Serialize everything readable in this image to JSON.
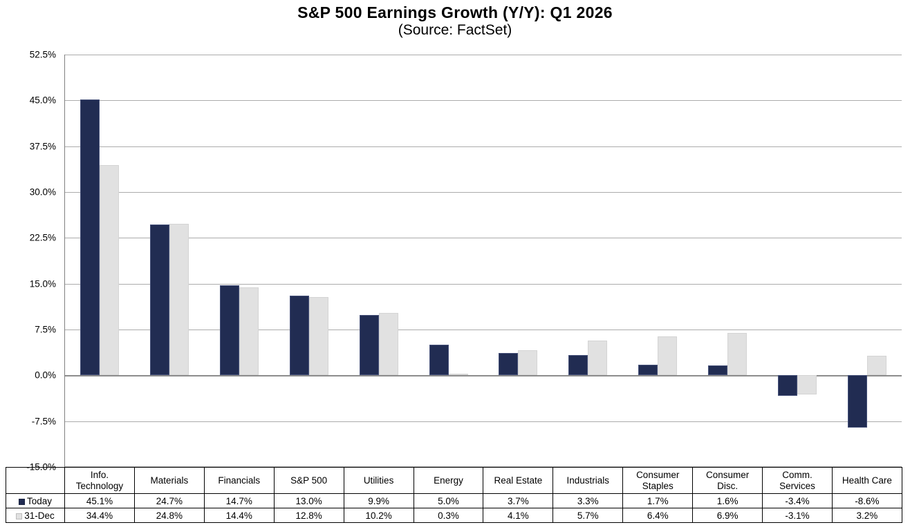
{
  "header": {
    "title": "S&P 500 Earnings Growth (Y/Y): Q1 2026",
    "subtitle": "(Source: FactSet)"
  },
  "chart_data": {
    "type": "bar",
    "title": "S&P 500 Earnings Growth (Y/Y): Q1 2026",
    "subtitle": "(Source: FactSet)",
    "categories": [
      "Info. Technology",
      "Materials",
      "Financials",
      "S&P 500",
      "Utilities",
      "Energy",
      "Real Estate",
      "Industrials",
      "Consumer Staples",
      "Consumer Disc.",
      "Comm. Services",
      "Health Care"
    ],
    "series": [
      {
        "name": "Today",
        "color": "#212c52",
        "values": [
          45.1,
          24.7,
          14.7,
          13.0,
          9.9,
          5.0,
          3.7,
          3.3,
          1.7,
          1.6,
          -3.4,
          -8.6
        ]
      },
      {
        "name": "31-Dec",
        "color": "#e1e1e1",
        "values": [
          34.4,
          24.8,
          14.4,
          12.8,
          10.2,
          0.3,
          4.1,
          5.7,
          6.4,
          6.9,
          -3.1,
          3.2
        ]
      }
    ],
    "y_ticks": [
      "52.5%",
      "45.0%",
      "37.5%",
      "30.0%",
      "22.5%",
      "15.0%",
      "7.5%",
      "0.0%",
      "-7.5%",
      "-15.0%"
    ],
    "ylim": [
      -15.0,
      52.5
    ],
    "grid": true,
    "legend_position": "table-left",
    "gridline_color": "#ababab",
    "zero_line_color": "#8c8c8c"
  },
  "table": {
    "rows": [
      {
        "label": "Today",
        "cells": [
          "45.1%",
          "24.7%",
          "14.7%",
          "13.0%",
          "9.9%",
          "5.0%",
          "3.7%",
          "3.3%",
          "1.7%",
          "1.6%",
          "-3.4%",
          "-8.6%"
        ]
      },
      {
        "label": "31-Dec",
        "cells": [
          "34.4%",
          "24.8%",
          "14.4%",
          "12.8%",
          "10.2%",
          "0.3%",
          "4.1%",
          "5.7%",
          "6.4%",
          "6.9%",
          "-3.1%",
          "3.2%"
        ]
      }
    ]
  }
}
